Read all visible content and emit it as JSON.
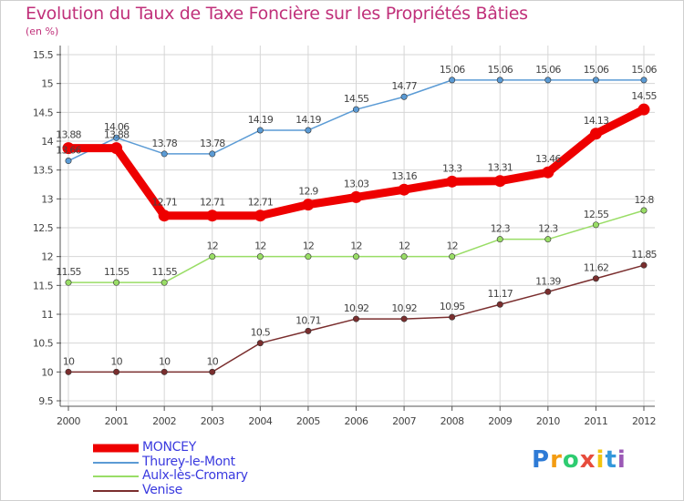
{
  "title": "Evolution du Taux de Taxe Foncière sur les Propriétés Bâties",
  "unit_label": "(en %)",
  "chart_data": {
    "type": "line",
    "title": "Evolution du Taux de Taxe Foncière sur les Propriétés Bâties",
    "ylabel": "(en %)",
    "xlabel": "",
    "x": [
      "2000",
      "2001",
      "2002",
      "2003",
      "2004",
      "2005",
      "2006",
      "2007",
      "2008",
      "2009",
      "2010",
      "2011",
      "2012"
    ],
    "ylim": [
      9.5,
      15.5
    ],
    "yticks": [
      "9.5",
      "10",
      "10.5",
      "11",
      "11.5",
      "12",
      "12.5",
      "13",
      "13.5",
      "14",
      "14.5",
      "15",
      "15.5"
    ],
    "grid": true,
    "series": [
      {
        "name": "MONCEY",
        "color": "#ee0000",
        "values": [
          13.88,
          13.88,
          12.71,
          12.71,
          12.71,
          12.9,
          13.03,
          13.16,
          13.3,
          13.31,
          13.46,
          14.13,
          14.55
        ],
        "labels": [
          "13.88",
          "13.88",
          "12.71",
          "12.71",
          "12.71",
          "12.9",
          "13.03",
          "13.16",
          "13.3",
          "13.31",
          "13.46",
          "14.13",
          "14.55"
        ]
      },
      {
        "name": "Thurey-le-Mont",
        "color": "#5b9bd5",
        "values": [
          13.66,
          14.06,
          13.78,
          13.78,
          14.19,
          14.19,
          14.55,
          14.77,
          15.06,
          15.06,
          15.06,
          15.06,
          15.06
        ],
        "labels": [
          "13.66",
          "14.06",
          "13.78",
          "13.78",
          "14.19",
          "14.19",
          "14.55",
          "14.77",
          "15.06",
          "15.06",
          "15.06",
          "15.06",
          "15.06"
        ]
      },
      {
        "name": "Aulx-lès-Cromary",
        "color": "#99dd66",
        "values": [
          11.55,
          11.55,
          11.55,
          12,
          12,
          12,
          12,
          12,
          12,
          12.3,
          12.3,
          12.55,
          12.8
        ],
        "labels": [
          "11.55",
          "11.55",
          "11.55",
          "12",
          "12",
          "12",
          "12",
          "12",
          "12",
          "12.3",
          "12.3",
          "12.55",
          "12.8"
        ]
      },
      {
        "name": "Venise",
        "color": "#7a2e2e",
        "values": [
          10,
          10,
          10,
          10,
          10.5,
          10.71,
          10.92,
          10.92,
          10.95,
          11.17,
          11.39,
          11.62,
          11.85
        ],
        "labels": [
          "10",
          "10",
          "10",
          "10",
          "10.5",
          "10.71",
          "10.92",
          "10.92",
          "10.95",
          "11.17",
          "11.39",
          "11.62",
          "11.85"
        ]
      }
    ],
    "legend_position": "bottom-left"
  },
  "legend": [
    {
      "label": "MONCEY",
      "color": "#ee0000"
    },
    {
      "label": "Thurey-le-Mont",
      "color": "#5b9bd5"
    },
    {
      "label": "Aulx-lès-Cromary",
      "color": "#99dd66"
    },
    {
      "label": "Venise",
      "color": "#7a2e2e"
    }
  ],
  "logo": {
    "letters": [
      "P",
      "r",
      "o",
      "x",
      "i",
      "t",
      "i"
    ],
    "colors": [
      "#2e7bd6",
      "#f39c12",
      "#2ecc71",
      "#e74c3c",
      "#f1c40f",
      "#3498db",
      "#9b59b6"
    ]
  }
}
